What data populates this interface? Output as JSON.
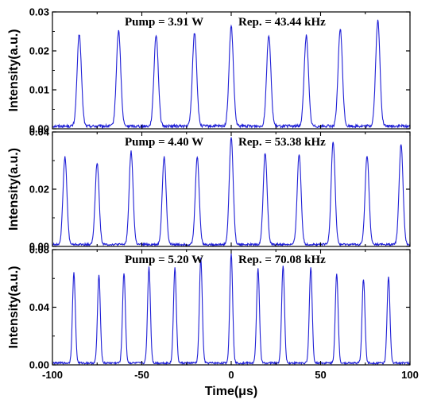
{
  "chart_data": [
    {
      "type": "line",
      "annotation_pump": "Pump = 3.91 W",
      "annotation_rep": "Rep. = 43.44 kHz",
      "ylabel": "Intensity(a.u.)",
      "xlabel": "",
      "xlim": [
        -100,
        100
      ],
      "ylim": [
        0,
        0.03
      ],
      "yticks": [
        "0.00",
        "0.01",
        "0.02",
        "0.03"
      ],
      "ytick_values": [
        0,
        0.01,
        0.02,
        0.03
      ],
      "pulse_times": [
        -85,
        -63,
        -42,
        -20.5,
        0,
        21,
        42,
        61,
        82
      ],
      "pulse_peaks": [
        0.0235,
        0.0245,
        0.0235,
        0.024,
        0.0256,
        0.0233,
        0.0232,
        0.025,
        0.027
      ],
      "baseline": 0.0008,
      "pulse_width": 1.2,
      "color": "#1f1fd6"
    },
    {
      "type": "line",
      "annotation_pump": "Pump = 4.40 W",
      "annotation_rep": "Rep. = 53.38 kHz",
      "ylabel": "Intensity(a.u.)",
      "xlabel": "",
      "xlim": [
        -100,
        100
      ],
      "ylim": [
        0,
        0.04
      ],
      "yticks": [
        "0.00",
        "0.02",
        "0.04"
      ],
      "ytick_values": [
        0,
        0.02,
        0.04
      ],
      "pulse_times": [
        -93,
        -75,
        -56,
        -37.5,
        -19,
        0,
        19,
        38,
        57,
        76,
        95
      ],
      "pulse_peaks": [
        0.0305,
        0.0285,
        0.0325,
        0.0305,
        0.0305,
        0.0375,
        0.032,
        0.0315,
        0.036,
        0.031,
        0.035
      ],
      "baseline": 0.0008,
      "pulse_width": 1.1,
      "color": "#1f1fd6"
    },
    {
      "type": "line",
      "annotation_pump": "Pump = 5.20 W",
      "annotation_rep": "Rep. = 70.08 kHz",
      "ylabel": "Intensity(a.u.)",
      "xlabel": "Time(μs)",
      "xlim": [
        -100,
        100
      ],
      "ylim": [
        0,
        0.08
      ],
      "yticks": [
        "0.00",
        "0.04",
        "0.08"
      ],
      "ytick_values": [
        0,
        0.04,
        0.08
      ],
      "xticks": [
        "-100",
        "-50",
        "0",
        "50",
        "100"
      ],
      "xtick_values": [
        -100,
        -50,
        0,
        50,
        100
      ],
      "pulse_times": [
        -88,
        -74,
        -60,
        -46,
        -31.5,
        -17,
        0,
        15,
        29,
        44.5,
        59,
        74,
        88
      ],
      "pulse_peaks": [
        0.0625,
        0.0605,
        0.0625,
        0.0665,
        0.066,
        0.0725,
        0.0765,
        0.0655,
        0.0675,
        0.0665,
        0.0615,
        0.0585,
        0.0595
      ],
      "baseline": 0.0015,
      "pulse_width": 0.8,
      "color": "#1f1fd6"
    }
  ]
}
